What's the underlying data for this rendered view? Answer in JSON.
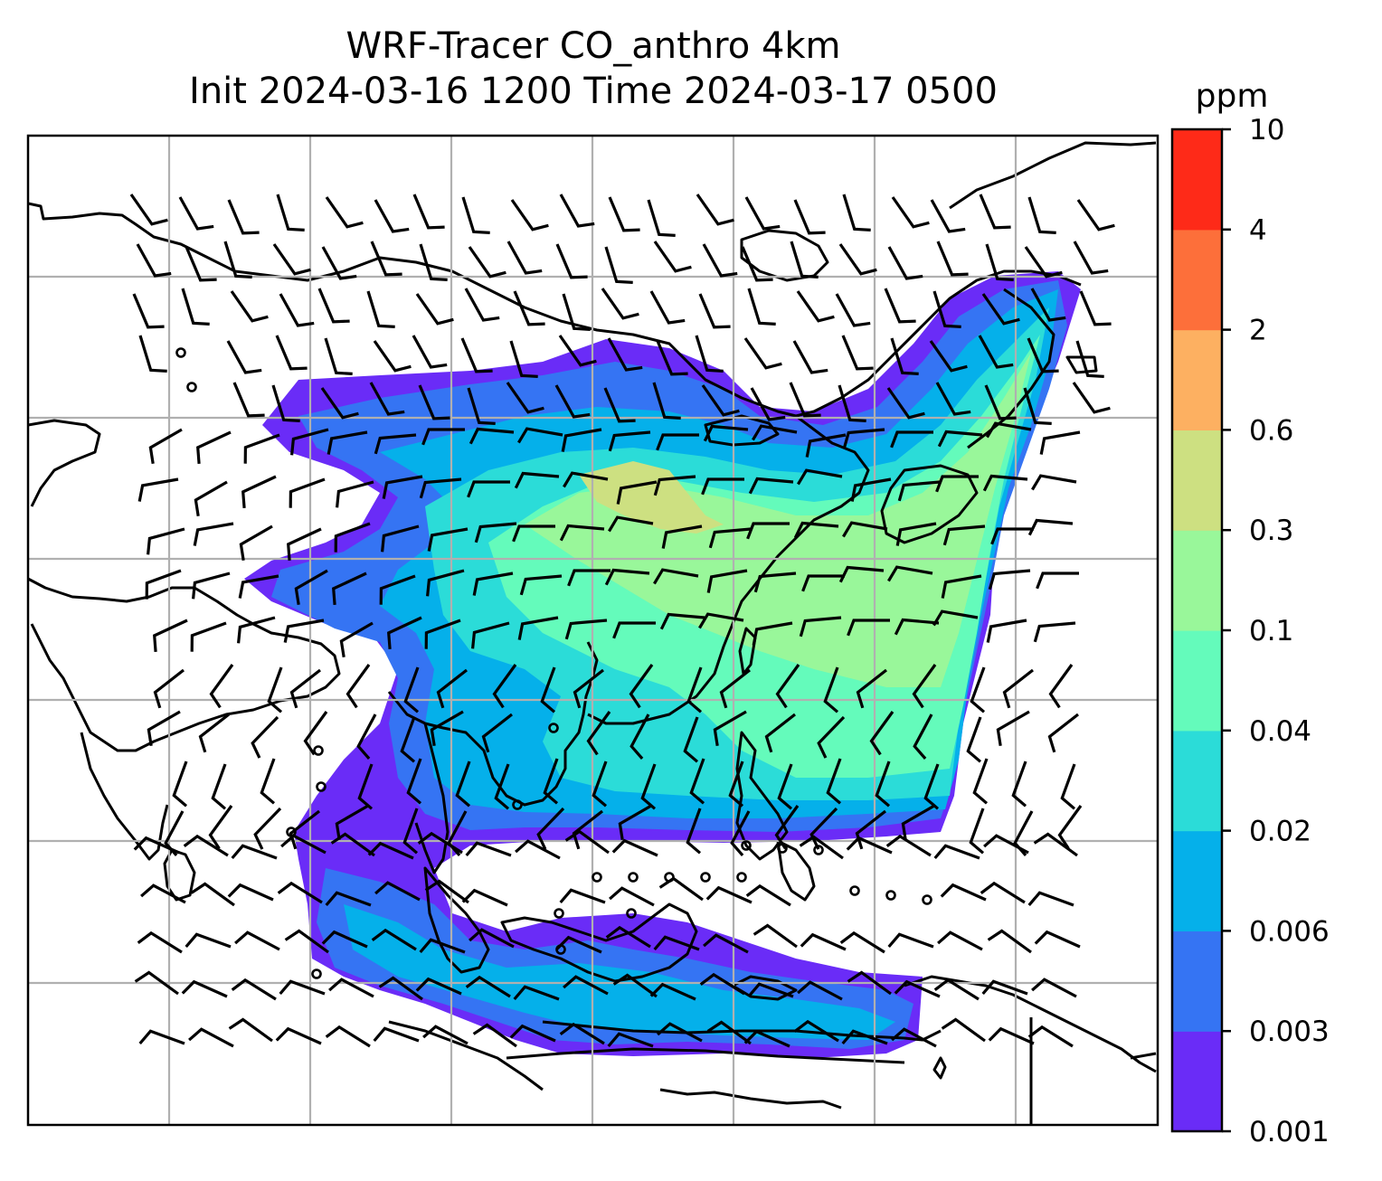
{
  "title": {
    "line1": "WRF-Tracer CO_anthro 4km",
    "line2": "Init 2024-03-16 1200 Time 2024-03-17 0500"
  },
  "colorbar": {
    "unit": "ppm",
    "levels": [
      "0.001",
      "0.003",
      "0.006",
      "0.02",
      "0.04",
      "0.1",
      "0.3",
      "0.6",
      "2",
      "4",
      "10"
    ],
    "colors": [
      "#6a2cf7",
      "#3574f3",
      "#05b0ea",
      "#2bdcd8",
      "#64fbbb",
      "#99f79a",
      "#cde081",
      "#fdb061",
      "#fd6f3a",
      "#fe2a18"
    ]
  },
  "map": {
    "field_name": "CO_anthro",
    "gridlines": true,
    "wind_barbs": true,
    "coastlines": true
  }
}
